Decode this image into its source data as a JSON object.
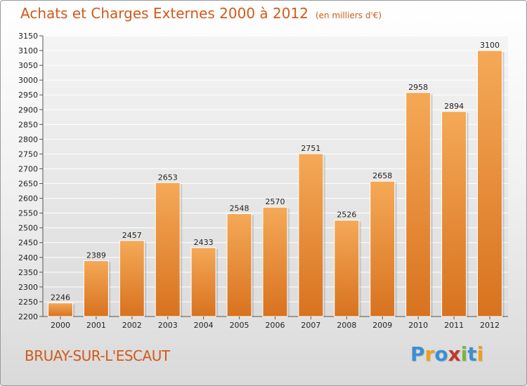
{
  "title": "Achats et Charges Externes 2000 à 2012",
  "subtitle": "(en milliers d'€)",
  "city": "BRUAY-SUR-L'ESCAUT",
  "logo": {
    "letters": [
      "P",
      "r",
      "o",
      "x",
      "i",
      "t",
      "i"
    ],
    "colors": [
      "#3a8fd4",
      "#e8a21b",
      "#3a8fd4",
      "#c0392b",
      "#7cb342",
      "#3a8fd4",
      "#e8a21b"
    ]
  },
  "chart_data": {
    "type": "bar",
    "categories": [
      "2000",
      "2001",
      "2002",
      "2003",
      "2004",
      "2005",
      "2006",
      "2007",
      "2008",
      "2009",
      "2010",
      "2011",
      "2012"
    ],
    "values": [
      2246,
      2389,
      2457,
      2653,
      2433,
      2548,
      2570,
      2751,
      2526,
      2658,
      2958,
      2894,
      3100
    ],
    "ylim": [
      2200,
      3150
    ],
    "ytick_step": 50,
    "grid": true,
    "bar_color_top": "#f5a957",
    "bar_color_bottom": "#d8721f"
  }
}
